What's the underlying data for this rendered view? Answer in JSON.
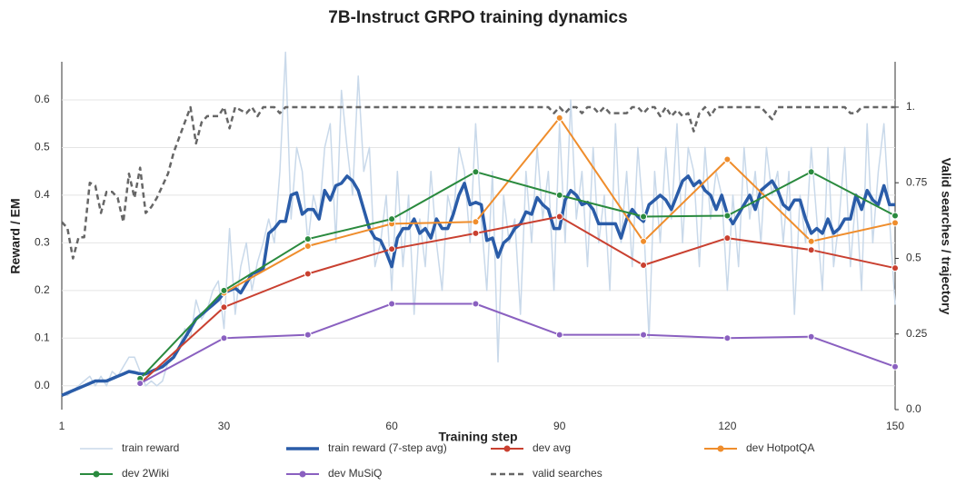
{
  "chart_data": {
    "type": "line",
    "title": "7B-Instruct GRPO training dynamics",
    "x_label": "Training step",
    "y_label": "Reward / EM",
    "y2_label": "Valid searches / trajectory",
    "xlim": [
      1,
      150
    ],
    "xticks": [
      1,
      30,
      60,
      90,
      120,
      150
    ],
    "ylim": [
      -0.05,
      0.68
    ],
    "yticks": [
      {
        "value": 0,
        "label": "0.0"
      },
      0.1,
      0.2,
      0.3,
      0.4,
      0.5,
      0.6
    ],
    "y2lim": [
      0,
      1.15
    ],
    "y2ticks": [
      {
        "value": 0,
        "label": "0.0"
      },
      0.25,
      0.5,
      0.75,
      {
        "value": 1,
        "label": "1."
      }
    ],
    "grid": true,
    "x": [
      1,
      2,
      3,
      4,
      5,
      6,
      7,
      8,
      9,
      10,
      11,
      12,
      13,
      14,
      15,
      16,
      17,
      18,
      19,
      20,
      21,
      22,
      23,
      24,
      25,
      26,
      27,
      28,
      29,
      30,
      31,
      32,
      33,
      34,
      35,
      36,
      37,
      38,
      39,
      40,
      41,
      42,
      43,
      44,
      45,
      46,
      47,
      48,
      49,
      50,
      51,
      52,
      53,
      54,
      55,
      56,
      57,
      58,
      59,
      60,
      61,
      62,
      63,
      64,
      65,
      66,
      67,
      68,
      69,
      70,
      71,
      72,
      73,
      74,
      75,
      76,
      77,
      78,
      79,
      80,
      81,
      82,
      83,
      84,
      85,
      86,
      87,
      88,
      89,
      90,
      91,
      92,
      93,
      94,
      95,
      96,
      97,
      98,
      99,
      100,
      101,
      102,
      103,
      104,
      105,
      106,
      107,
      108,
      109,
      110,
      111,
      112,
      113,
      114,
      115,
      116,
      117,
      118,
      119,
      120,
      121,
      122,
      123,
      124,
      125,
      126,
      127,
      128,
      129,
      130,
      131,
      132,
      133,
      134,
      135,
      136,
      137,
      138,
      139,
      140,
      141,
      142,
      143,
      144,
      145,
      146,
      147,
      148,
      149,
      150
    ],
    "series": [
      {
        "name": "train reward",
        "color": "#c9d9ea",
        "style": "thin",
        "marker": false,
        "values": [
          -0.02,
          -0.02,
          -0.01,
          0.0,
          0.01,
          0.02,
          0.0,
          0.02,
          0.0,
          0.03,
          0.02,
          0.04,
          0.06,
          0.06,
          0.03,
          0.0,
          0.01,
          0.0,
          0.01,
          0.05,
          0.06,
          0.08,
          0.12,
          0.1,
          0.18,
          0.14,
          0.16,
          0.2,
          0.22,
          0.12,
          0.33,
          0.15,
          0.25,
          0.3,
          0.2,
          0.26,
          0.3,
          0.35,
          0.3,
          0.45,
          0.7,
          0.35,
          0.5,
          0.45,
          0.3,
          0.4,
          0.35,
          0.5,
          0.55,
          0.3,
          0.62,
          0.5,
          0.4,
          0.65,
          0.45,
          0.5,
          0.25,
          0.3,
          0.4,
          0.2,
          0.45,
          0.25,
          0.4,
          0.15,
          0.35,
          0.25,
          0.45,
          0.3,
          0.2,
          0.4,
          0.35,
          0.5,
          0.45,
          0.3,
          0.55,
          0.35,
          0.2,
          0.45,
          0.05,
          0.4,
          0.3,
          0.35,
          0.15,
          0.45,
          0.3,
          0.5,
          0.35,
          0.45,
          0.2,
          0.55,
          0.3,
          0.6,
          0.35,
          0.45,
          0.25,
          0.5,
          0.3,
          0.4,
          0.2,
          0.55,
          0.3,
          0.45,
          0.25,
          0.5,
          0.35,
          0.1,
          0.45,
          0.3,
          0.5,
          0.35,
          0.55,
          0.3,
          0.5,
          0.45,
          0.25,
          0.5,
          0.35,
          0.45,
          0.4,
          0.2,
          0.4,
          0.25,
          0.5,
          0.35,
          0.45,
          0.3,
          0.5,
          0.4,
          0.45,
          0.3,
          0.45,
          0.15,
          0.4,
          0.3,
          0.5,
          0.35,
          0.2,
          0.5,
          0.25,
          0.35,
          0.5,
          0.25,
          0.4,
          0.2,
          0.55,
          0.3,
          0.45,
          0.55,
          0.35,
          0.17
        ]
      },
      {
        "name": "train reward (7-step avg)",
        "color": "#2a5ca8",
        "style": "thick",
        "marker": false,
        "values": [
          -0.02,
          -0.015,
          -0.01,
          -0.005,
          0,
          0.005,
          0.01,
          0.01,
          0.01,
          0.015,
          0.02,
          0.025,
          0.03,
          0.028,
          0.025,
          0.025,
          0.03,
          0.035,
          0.04,
          0.05,
          0.06,
          0.08,
          0.1,
          0.12,
          0.14,
          0.15,
          0.16,
          0.17,
          0.18,
          0.195,
          0.2,
          0.205,
          0.195,
          0.215,
          0.235,
          0.24,
          0.245,
          0.32,
          0.33,
          0.345,
          0.345,
          0.4,
          0.405,
          0.36,
          0.37,
          0.37,
          0.35,
          0.41,
          0.39,
          0.42,
          0.425,
          0.44,
          0.43,
          0.41,
          0.37,
          0.33,
          0.31,
          0.305,
          0.28,
          0.25,
          0.31,
          0.33,
          0.33,
          0.35,
          0.32,
          0.33,
          0.31,
          0.35,
          0.33,
          0.33,
          0.36,
          0.4,
          0.425,
          0.38,
          0.385,
          0.38,
          0.305,
          0.31,
          0.27,
          0.3,
          0.31,
          0.33,
          0.34,
          0.365,
          0.36,
          0.395,
          0.38,
          0.37,
          0.33,
          0.33,
          0.39,
          0.41,
          0.4,
          0.38,
          0.385,
          0.37,
          0.34,
          0.34,
          0.34,
          0.34,
          0.31,
          0.35,
          0.37,
          0.355,
          0.345,
          0.38,
          0.39,
          0.4,
          0.39,
          0.37,
          0.4,
          0.43,
          0.44,
          0.42,
          0.43,
          0.41,
          0.4,
          0.37,
          0.4,
          0.36,
          0.34,
          0.36,
          0.38,
          0.4,
          0.37,
          0.41,
          0.42,
          0.43,
          0.41,
          0.38,
          0.37,
          0.39,
          0.39,
          0.35,
          0.32,
          0.33,
          0.32,
          0.35,
          0.32,
          0.33,
          0.35,
          0.35,
          0.4,
          0.37,
          0.41,
          0.39,
          0.38,
          0.42,
          0.38,
          0.38
        ]
      },
      {
        "name": "dev avg",
        "color": "#c94030",
        "style": "line",
        "marker": true,
        "x": [
          15,
          30,
          45,
          60,
          75,
          90,
          105,
          120,
          135,
          150
        ],
        "values": [
          0.005,
          0.165,
          0.235,
          0.287,
          0.32,
          0.355,
          0.253,
          0.31,
          0.285,
          0.247
        ]
      },
      {
        "name": "dev HotpotQA",
        "color": "#ef8d2c",
        "style": "line",
        "marker": true,
        "x": [
          30,
          45,
          60,
          75,
          90,
          105,
          120,
          135,
          150
        ],
        "values": [
          0.195,
          0.293,
          0.34,
          0.344,
          0.562,
          0.303,
          0.475,
          0.303,
          0.342
        ]
      },
      {
        "name": "dev 2Wiki",
        "color": "#2a8a3e",
        "style": "line",
        "marker": true,
        "x": [
          15,
          30,
          45,
          60,
          75,
          90,
          105,
          120,
          135,
          150
        ],
        "values": [
          0.015,
          0.2,
          0.308,
          0.35,
          0.449,
          0.4,
          0.355,
          0.357,
          0.449,
          0.357
        ]
      },
      {
        "name": "dev MuSiQ",
        "color": "#8a60c0",
        "style": "line",
        "marker": true,
        "x": [
          15,
          30,
          45,
          60,
          75,
          90,
          105,
          120,
          135,
          150
        ],
        "values": [
          0.005,
          0.1,
          0.107,
          0.172,
          0.172,
          0.107,
          0.107,
          0.1,
          0.103,
          0.04
        ]
      },
      {
        "name": "valid searches",
        "color": "#666666",
        "style": "dashed",
        "marker": false,
        "axis": "y2",
        "values": [
          0.62,
          0.6,
          0.5,
          0.57,
          0.57,
          0.75,
          0.74,
          0.65,
          0.72,
          0.72,
          0.7,
          0.62,
          0.78,
          0.7,
          0.8,
          0.65,
          0.67,
          0.7,
          0.74,
          0.78,
          0.85,
          0.9,
          0.95,
          1.0,
          0.88,
          0.95,
          0.97,
          0.97,
          0.97,
          1.0,
          0.93,
          1.0,
          0.99,
          0.98,
          1.0,
          0.97,
          1.0,
          1.0,
          1.0,
          0.98,
          1.0,
          1.0,
          1.0,
          1.0,
          1.0,
          1.0,
          1.0,
          1.0,
          1.0,
          1.0,
          1.0,
          1.0,
          1.0,
          1.0,
          1.0,
          1.0,
          1.0,
          1.0,
          1.0,
          1.0,
          1.0,
          1.0,
          1.0,
          1.0,
          1.0,
          1.0,
          1.0,
          1.0,
          1.0,
          1.0,
          1.0,
          1.0,
          1.0,
          1.0,
          1.0,
          1.0,
          1.0,
          1.0,
          1.0,
          1.0,
          1.0,
          1.0,
          1.0,
          1.0,
          1.0,
          1.0,
          1.0,
          1.0,
          0.98,
          1.0,
          0.98,
          1.0,
          1.0,
          0.98,
          1.0,
          1.0,
          0.98,
          1.0,
          0.98,
          0.98,
          0.98,
          0.98,
          1.0,
          1.0,
          0.98,
          1.0,
          1.0,
          0.97,
          1.0,
          0.97,
          0.99,
          0.97,
          0.98,
          0.92,
          0.98,
          1.0,
          0.97,
          1.0,
          1.0,
          1.0,
          1.0,
          1.0,
          1.0,
          1.0,
          1.0,
          1.0,
          0.98,
          0.96,
          1.0,
          1.0,
          1.0,
          1.0,
          1.0,
          1.0,
          1.0,
          1.0,
          1.0,
          1.0,
          1.0,
          1.0,
          1.0,
          0.98,
          0.98,
          1.0,
          1.0,
          1.0,
          1.0,
          1.0,
          1.0,
          1.0
        ]
      }
    ]
  }
}
